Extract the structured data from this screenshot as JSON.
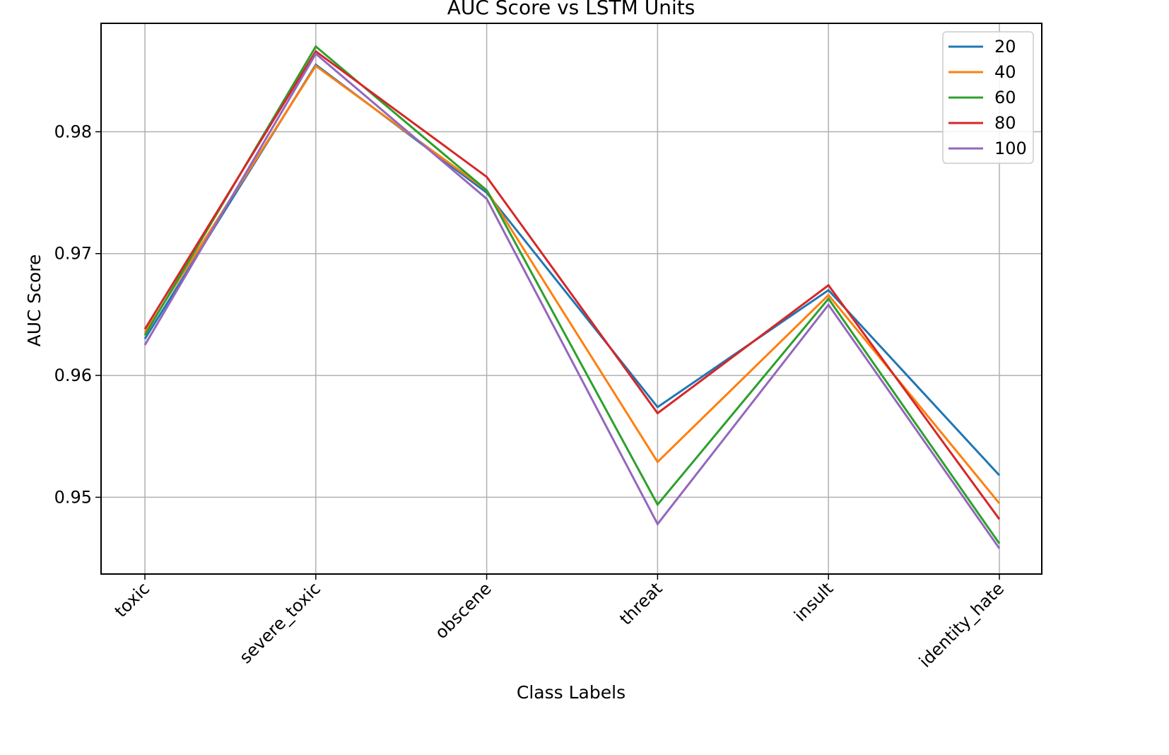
{
  "chart_data": {
    "type": "line",
    "title": "AUC Score vs LSTM Units",
    "xlabel": "Class Labels",
    "ylabel": "AUC Score",
    "categories": [
      "toxic",
      "severe_toxic",
      "obscene",
      "threat",
      "insult",
      "identity_hate"
    ],
    "ylim": [
      0.9437,
      0.9889
    ],
    "yticks": [
      0.95,
      0.96,
      0.97,
      0.98
    ],
    "ytick_labels": [
      "0.95",
      "0.96",
      "0.97",
      "0.98"
    ],
    "grid": true,
    "legend_position": "upper right",
    "series": [
      {
        "name": "20",
        "color": "#1f77b4",
        "values": [
          0.963,
          0.9855,
          0.975,
          0.9574,
          0.967,
          0.9518
        ]
      },
      {
        "name": "40",
        "color": "#ff7f0e",
        "values": [
          0.9635,
          0.9854,
          0.9752,
          0.9529,
          0.9666,
          0.9495
        ]
      },
      {
        "name": "60",
        "color": "#2ca02c",
        "values": [
          0.9633,
          0.987,
          0.9752,
          0.9494,
          0.9663,
          0.9462
        ]
      },
      {
        "name": "80",
        "color": "#d62728",
        "values": [
          0.9638,
          0.9866,
          0.9763,
          0.9569,
          0.9674,
          0.9482
        ]
      },
      {
        "name": "100",
        "color": "#9467bd",
        "values": [
          0.9625,
          0.9864,
          0.9745,
          0.9478,
          0.9658,
          0.9458
        ]
      }
    ]
  }
}
